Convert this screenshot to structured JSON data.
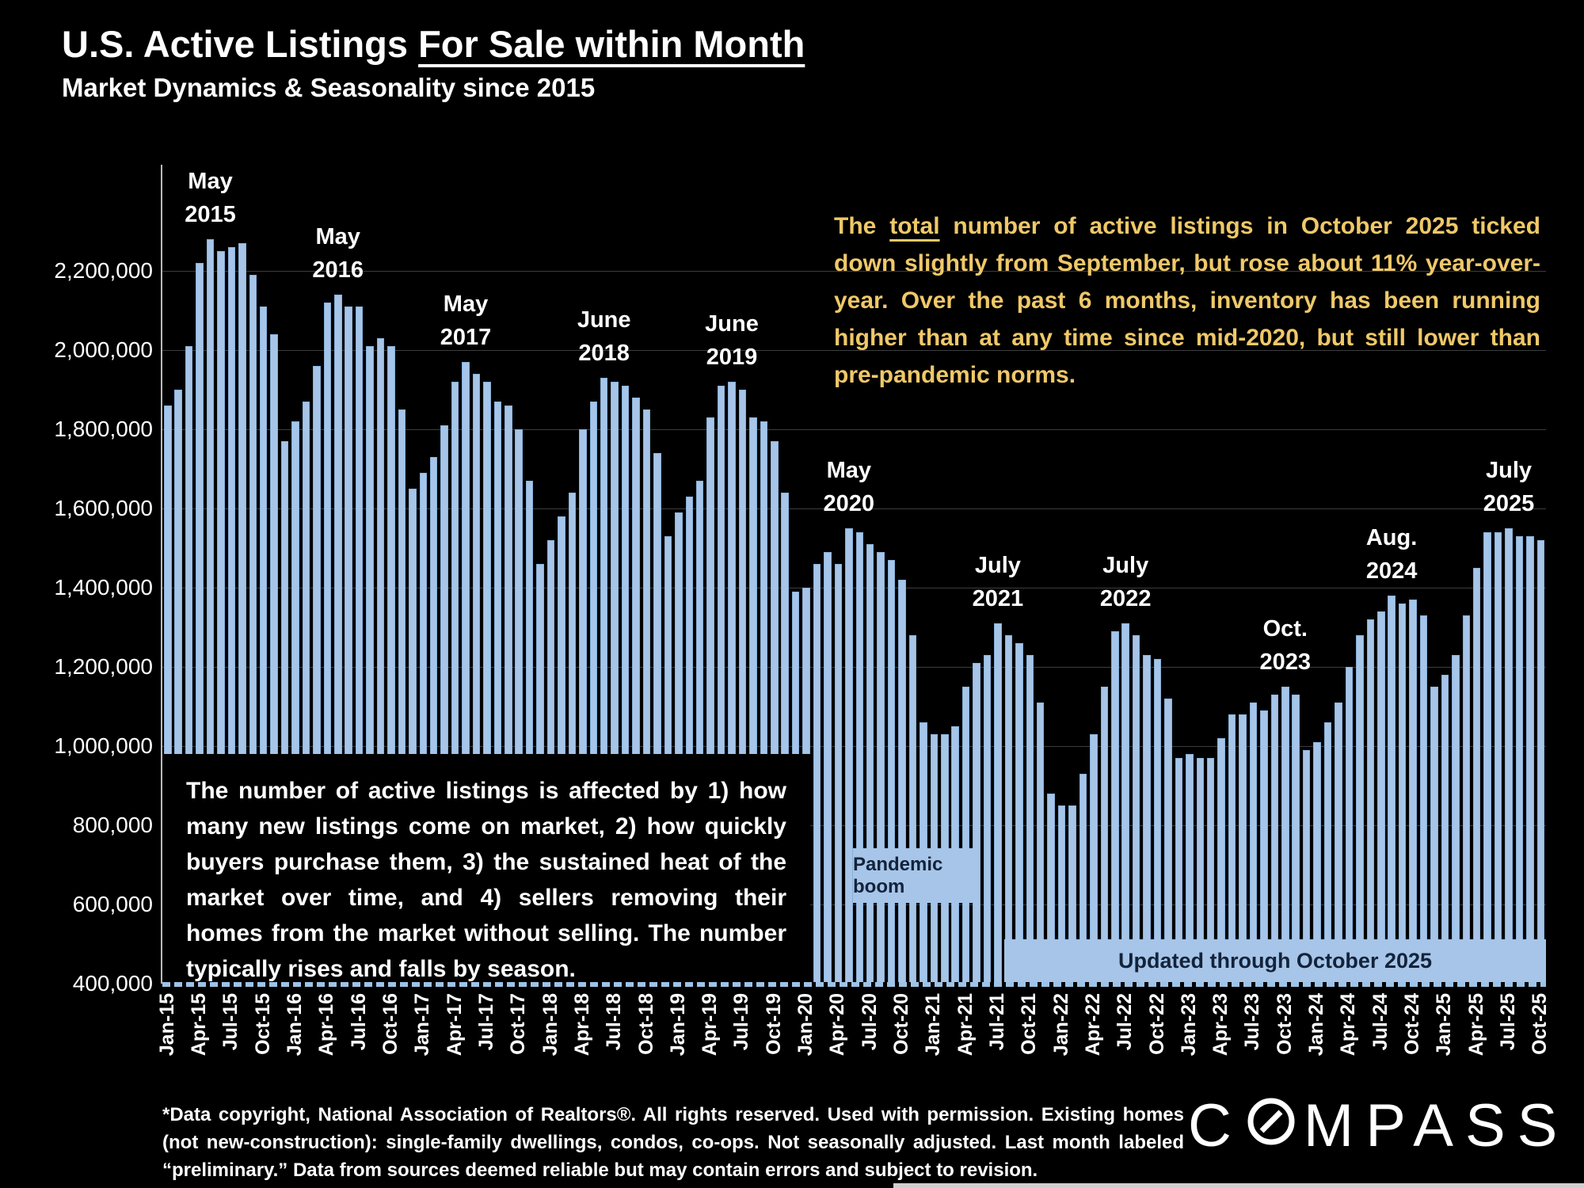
{
  "header": {
    "title_plain": "U.S. Active Listings ",
    "title_underlined": "For Sale within Month",
    "subtitle": "Market Dynamics & Seasonality since 2015"
  },
  "annotation": {
    "pre": "The ",
    "underlined": "total",
    "post": " number of active listings in October 2025 ticked down slightly from September, but rose about 11% year-over-year. Over the past 6 months, inventory has been running higher than at any time since mid-2020, but still lower than pre-pandemic norms."
  },
  "info_box": {
    "text": "The number of active listings is affected by 1) how many new listings come on market, 2) how quickly buyers purchase them, 3) the sustained heat of the market over time, and 4) sellers removing their homes from the market without selling. The number typically rises and falls by season."
  },
  "overlays": {
    "pandemic_boom": "Pandemic boom",
    "updated_through": "Updated through October 2025"
  },
  "footer": {
    "disclaimer": "*Data copyright, National Association of Realtors®. All rights reserved. Used with permission. Existing homes (not new-construction): single-family dwellings, condos, co-ops. Not seasonally adjusted. Last month labeled “preliminary.” Data from sources deemed reliable but may contain errors and subject to revision.",
    "logo_text_c": "C",
    "logo_text_rest": "MPASS"
  },
  "chart_data": {
    "type": "bar",
    "title": "U.S. Active Listings For Sale within Month",
    "xlabel": "",
    "ylabel": "",
    "ylim": [
      400000,
      2466000
    ],
    "grid": true,
    "bar_color": "#A6C5E8",
    "ytick_values": [
      2200000,
      2000000,
      1800000,
      1600000,
      1400000,
      1200000,
      1000000,
      800000,
      600000,
      400000
    ],
    "ytick_labels": [
      "2,200,000",
      "2,000,000",
      "1,800,000",
      "1,600,000",
      "1,400,000",
      "1,200,000",
      "1,000,000",
      "800,000",
      "600,000",
      "400,000"
    ],
    "xtick_every": 3,
    "x": [
      "Jan-15",
      "Feb-15",
      "Mar-15",
      "Apr-15",
      "May-15",
      "Jun-15",
      "Jul-15",
      "Aug-15",
      "Sep-15",
      "Oct-15",
      "Nov-15",
      "Dec-15",
      "Jan-16",
      "Feb-16",
      "Mar-16",
      "Apr-16",
      "May-16",
      "Jun-16",
      "Jul-16",
      "Aug-16",
      "Sep-16",
      "Oct-16",
      "Nov-16",
      "Dec-16",
      "Jan-17",
      "Feb-17",
      "Mar-17",
      "Apr-17",
      "May-17",
      "Jun-17",
      "Jul-17",
      "Aug-17",
      "Sep-17",
      "Oct-17",
      "Nov-17",
      "Dec-17",
      "Jan-18",
      "Feb-18",
      "Mar-18",
      "Apr-18",
      "May-18",
      "Jun-18",
      "Jul-18",
      "Aug-18",
      "Sep-18",
      "Oct-18",
      "Nov-18",
      "Dec-18",
      "Jan-19",
      "Feb-19",
      "Mar-19",
      "Apr-19",
      "May-19",
      "Jun-19",
      "Jul-19",
      "Aug-19",
      "Sep-19",
      "Oct-19",
      "Nov-19",
      "Dec-19",
      "Jan-20",
      "Feb-20",
      "Mar-20",
      "Apr-20",
      "May-20",
      "Jun-20",
      "Jul-20",
      "Aug-20",
      "Sep-20",
      "Oct-20",
      "Nov-20",
      "Dec-20",
      "Jan-21",
      "Feb-21",
      "Mar-21",
      "Apr-21",
      "May-21",
      "Jun-21",
      "Jul-21",
      "Aug-21",
      "Sep-21",
      "Oct-21",
      "Nov-21",
      "Dec-21",
      "Jan-22",
      "Feb-22",
      "Mar-22",
      "Apr-22",
      "May-22",
      "Jun-22",
      "Jul-22",
      "Aug-22",
      "Sep-22",
      "Oct-22",
      "Nov-22",
      "Dec-22",
      "Jan-23",
      "Feb-23",
      "Mar-23",
      "Apr-23",
      "May-23",
      "Jun-23",
      "Jul-23",
      "Aug-23",
      "Sep-23",
      "Oct-23",
      "Nov-23",
      "Dec-23",
      "Jan-24",
      "Feb-24",
      "Mar-24",
      "Apr-24",
      "May-24",
      "Jun-24",
      "Jul-24",
      "Aug-24",
      "Sep-24",
      "Oct-24",
      "Nov-24",
      "Dec-24",
      "Jan-25",
      "Feb-25",
      "Mar-25",
      "Apr-25",
      "May-25",
      "Jun-25",
      "Jul-25",
      "Aug-25",
      "Sep-25",
      "Oct-25"
    ],
    "values": [
      1860000,
      1900000,
      2010000,
      2220000,
      2280000,
      2250000,
      2260000,
      2270000,
      2190000,
      2110000,
      2040000,
      1770000,
      1820000,
      1870000,
      1960000,
      2120000,
      2140000,
      2110000,
      2110000,
      2010000,
      2030000,
      2010000,
      1850000,
      1650000,
      1690000,
      1730000,
      1810000,
      1920000,
      1970000,
      1940000,
      1920000,
      1870000,
      1860000,
      1800000,
      1670000,
      1460000,
      1520000,
      1580000,
      1640000,
      1800000,
      1870000,
      1930000,
      1920000,
      1910000,
      1880000,
      1850000,
      1740000,
      1530000,
      1590000,
      1630000,
      1670000,
      1830000,
      1910000,
      1920000,
      1900000,
      1830000,
      1820000,
      1770000,
      1640000,
      1390000,
      1400000,
      1460000,
      1490000,
      1460000,
      1550000,
      1540000,
      1510000,
      1490000,
      1470000,
      1420000,
      1280000,
      1060000,
      1030000,
      1030000,
      1050000,
      1150000,
      1210000,
      1230000,
      1310000,
      1280000,
      1260000,
      1230000,
      1110000,
      880000,
      850000,
      850000,
      930000,
      1030000,
      1150000,
      1290000,
      1310000,
      1280000,
      1230000,
      1220000,
      1120000,
      970000,
      980000,
      970000,
      970000,
      1020000,
      1080000,
      1080000,
      1110000,
      1090000,
      1130000,
      1150000,
      1130000,
      990000,
      1010000,
      1060000,
      1110000,
      1200000,
      1280000,
      1320000,
      1340000,
      1380000,
      1360000,
      1370000,
      1330000,
      1150000,
      1180000,
      1230000,
      1330000,
      1450000,
      1540000,
      1540000,
      1550000,
      1530000,
      1530000,
      1520000
    ],
    "peak_labels": [
      {
        "index": 4,
        "line1": "May",
        "line2": "2015"
      },
      {
        "index": 16,
        "line1": "May",
        "line2": "2016"
      },
      {
        "index": 28,
        "line1": "May",
        "line2": "2017"
      },
      {
        "index": 41,
        "line1": "June",
        "line2": "2018"
      },
      {
        "index": 53,
        "line1": "June",
        "line2": "2019"
      },
      {
        "index": 64,
        "line1": "May",
        "line2": "2020"
      },
      {
        "index": 78,
        "line1": "July",
        "line2": "2021"
      },
      {
        "index": 90,
        "line1": "July",
        "line2": "2022"
      },
      {
        "index": 105,
        "line1": "Oct.",
        "line2": "2023"
      },
      {
        "index": 115,
        "line1": "Aug.",
        "line2": "2024"
      },
      {
        "index": 126,
        "line1": "July",
        "line2": "2025"
      }
    ]
  }
}
